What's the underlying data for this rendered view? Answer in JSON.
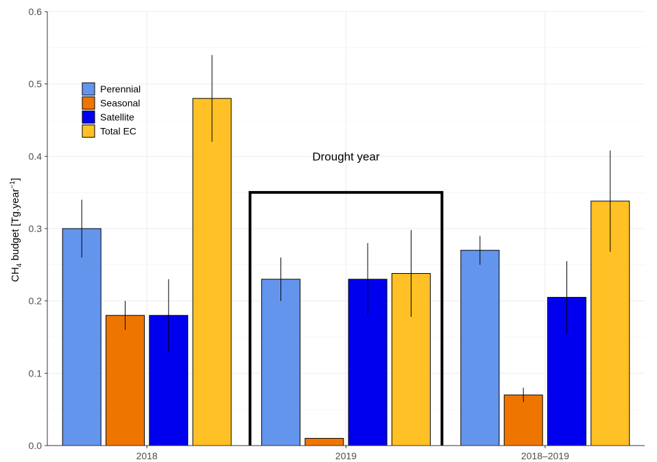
{
  "chart_data": {
    "type": "bar",
    "categories": [
      "2018",
      "2019",
      "2018–2019"
    ],
    "series": [
      {
        "name": "Perennial",
        "color": "#6495ED",
        "values": [
          0.3,
          0.23,
          0.27
        ],
        "error": [
          0.04,
          0.03,
          0.02
        ]
      },
      {
        "name": "Seasonal",
        "color": "#EE7600",
        "values": [
          0.18,
          0.01,
          0.07
        ],
        "error": [
          0.02,
          0.0,
          0.01
        ]
      },
      {
        "name": "Satellite",
        "color": "#0000EE",
        "values": [
          0.18,
          0.23,
          0.205
        ],
        "error": [
          0.05,
          0.05,
          0.05
        ]
      },
      {
        "name": "Total EC",
        "color": "#FFC125",
        "values": [
          0.48,
          0.238,
          0.338
        ],
        "error": [
          0.06,
          0.06,
          0.07
        ]
      }
    ],
    "ylabel": {
      "prefix": "CH",
      "sub": "4",
      "middle": " budget [Tg.year",
      "sup": "−1",
      "suffix": "]"
    },
    "yticks": [
      "0.0",
      "0.1",
      "0.2",
      "0.3",
      "0.4",
      "0.5",
      "0.6"
    ],
    "ylim": [
      0,
      0.6
    ],
    "grid": true,
    "legend_position": "top-left",
    "annotation": {
      "text": "Drought year",
      "highlight_category": "2019",
      "box_top_value": 0.35
    }
  }
}
